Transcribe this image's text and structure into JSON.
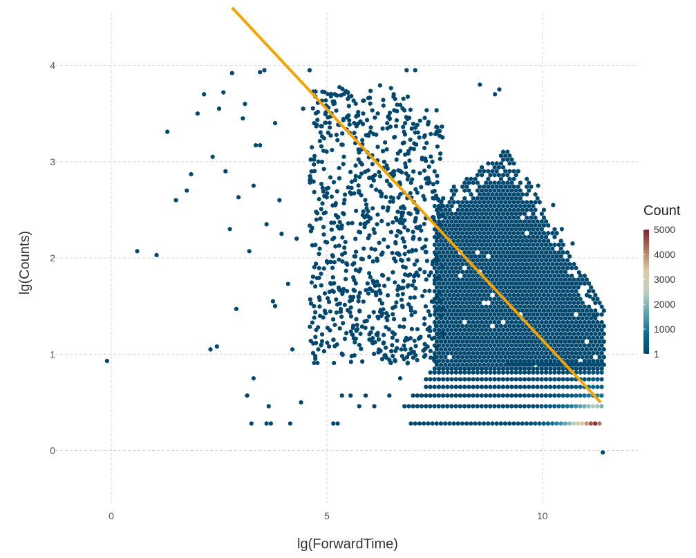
{
  "chart_data": {
    "type": "hexbin",
    "xlabel": "lg(ForwardTime)",
    "ylabel": "lg(Counts)",
    "xlim": [
      -1.3,
      12.2
    ],
    "ylim": [
      -0.65,
      4.55
    ],
    "x_ticks": [
      0,
      5,
      10
    ],
    "y_ticks": [
      0,
      1,
      2,
      3,
      4
    ],
    "x_tick_labels": [
      "0",
      "5",
      "10"
    ],
    "y_tick_labels": [
      "0",
      "1",
      "2",
      "3",
      "4"
    ],
    "grid": true,
    "legend": {
      "title": "Count",
      "position": "right",
      "ticks": [
        1,
        1000,
        2000,
        3000,
        4000,
        5000
      ],
      "tick_labels": [
        "1",
        "1000",
        "2000",
        "3000",
        "4000",
        "5000"
      ],
      "colors": [
        "#00476e",
        "#0b6d92",
        "#5fa5b1",
        "#bcd0c0",
        "#dcc9a4",
        "#b57a5e",
        "#7d2133"
      ]
    },
    "fit_line": {
      "x": [
        2.8,
        11.35
      ],
      "y": [
        4.6,
        0.5
      ],
      "color": "#f5a300"
    },
    "dense_region": {
      "x_range": [
        7.5,
        11.45
      ],
      "y_range": [
        0.85,
        3.2
      ],
      "count": 1
    },
    "rows": [
      {
        "y": 0.28,
        "x_start": 6.95,
        "x_end": 11.4,
        "peak_x": 11.2,
        "peak_count": 5000
      },
      {
        "y": 0.46,
        "x_start": 6.8,
        "x_end": 11.4,
        "peak_x": 11.2,
        "peak_count": 2500
      },
      {
        "y": 0.57,
        "x_start": 7.0,
        "x_end": 11.4,
        "peak_x": 11.2,
        "peak_count": 1200
      },
      {
        "y": 0.66,
        "x_start": 7.3,
        "x_end": 11.4,
        "peak_x": 11.2,
        "peak_count": 700
      },
      {
        "y": 0.74,
        "x_start": 7.3,
        "x_end": 11.4,
        "peak_x": 11.2,
        "peak_count": 400
      },
      {
        "y": 0.81,
        "x_start": 7.4,
        "x_end": 11.4,
        "peak_x": 11.2,
        "peak_count": 250
      },
      {
        "y": 0.9,
        "x_start": 9.2,
        "x_end": 11.4,
        "peak_x": 11.2,
        "peak_count": 200
      }
    ],
    "outliers": [
      [
        -0.1,
        0.93
      ],
      [
        0.6,
        2.07
      ],
      [
        1.05,
        2.03
      ],
      [
        1.3,
        3.31
      ],
      [
        1.5,
        2.6
      ],
      [
        1.75,
        2.7
      ],
      [
        1.85,
        2.87
      ],
      [
        2.0,
        3.5
      ],
      [
        2.15,
        3.7
      ],
      [
        2.3,
        1.05
      ],
      [
        2.35,
        3.05
      ],
      [
        2.45,
        1.08
      ],
      [
        2.5,
        3.55
      ],
      [
        2.6,
        3.72
      ],
      [
        2.65,
        2.9
      ],
      [
        2.75,
        2.3
      ],
      [
        2.8,
        3.92
      ],
      [
        2.9,
        1.47
      ],
      [
        2.95,
        2.63
      ],
      [
        3.05,
        3.45
      ],
      [
        3.1,
        3.6
      ],
      [
        3.15,
        0.57
      ],
      [
        3.2,
        2.07
      ],
      [
        3.25,
        0.28
      ],
      [
        3.3,
        0.75
      ],
      [
        3.3,
        2.75
      ],
      [
        3.35,
        3.17
      ],
      [
        3.45,
        3.17
      ],
      [
        3.45,
        3.93
      ],
      [
        3.55,
        3.95
      ],
      [
        3.6,
        0.28
      ],
      [
        3.65,
        0.46
      ],
      [
        3.6,
        2.35
      ],
      [
        3.7,
        0.28
      ],
      [
        3.75,
        1.55
      ],
      [
        3.8,
        1.5
      ],
      [
        3.8,
        3.4
      ],
      [
        3.9,
        2.6
      ],
      [
        3.95,
        2.25
      ],
      [
        4.1,
        1.73
      ],
      [
        4.15,
        0.28
      ],
      [
        4.2,
        1.05
      ],
      [
        4.3,
        2.2
      ],
      [
        4.4,
        0.5
      ],
      [
        4.45,
        3.55
      ],
      [
        4.6,
        3.95
      ],
      [
        4.7,
        1.5
      ],
      [
        4.8,
        1.05
      ],
      [
        4.95,
        1.45
      ],
      [
        5.05,
        1.08
      ],
      [
        5.15,
        0.28
      ],
      [
        5.25,
        0.28
      ],
      [
        5.35,
        0.57
      ],
      [
        5.55,
        0.57
      ],
      [
        5.6,
        1.2
      ],
      [
        5.75,
        0.46
      ],
      [
        5.9,
        0.57
      ],
      [
        6.1,
        0.46
      ],
      [
        6.35,
        3.2
      ],
      [
        6.45,
        0.57
      ],
      [
        6.55,
        3.7
      ],
      [
        6.7,
        0.75
      ],
      [
        6.85,
        3.95
      ],
      [
        7.05,
        3.95
      ],
      [
        8.55,
        3.8
      ],
      [
        8.9,
        3.7
      ],
      [
        9.0,
        3.75
      ],
      [
        9.9,
        2.75
      ],
      [
        10.25,
        2.55
      ],
      [
        10.45,
        2.3
      ],
      [
        10.7,
        2.15
      ],
      [
        10.85,
        1.85
      ],
      [
        11.1,
        1.6
      ],
      [
        11.2,
        1.4
      ],
      [
        11.4,
        -0.02
      ]
    ]
  }
}
